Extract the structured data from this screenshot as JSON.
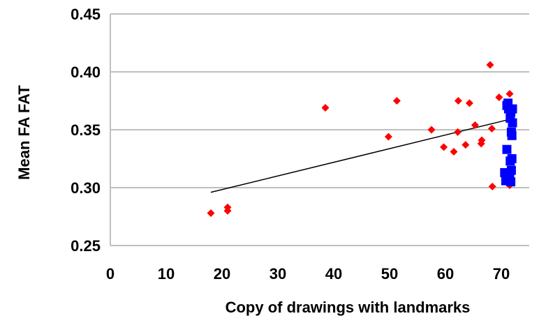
{
  "chart_data": {
    "type": "scatter",
    "xlabel": "Copy of drawings with landmarks",
    "ylabel": "Mean FA FAT",
    "xlim": [
      0,
      75
    ],
    "ylim": [
      0.25,
      0.45
    ],
    "x_ticks": [
      "0",
      "10",
      "20",
      "30",
      "40",
      "50",
      "60",
      "70"
    ],
    "x_tick_values": [
      0,
      10,
      20,
      30,
      40,
      50,
      60,
      70
    ],
    "y_ticks": [
      "0.25",
      "0.30",
      "0.35",
      "0.40",
      "0.45"
    ],
    "y_tick_values": [
      0.25,
      0.3,
      0.35,
      0.4,
      0.45
    ],
    "grid": "horizontal",
    "legend": "none",
    "series": [
      {
        "marker": "diamond",
        "color": "#ff0000",
        "points": [
          [
            18,
            0.278
          ],
          [
            21,
            0.28
          ],
          [
            21,
            0.283
          ],
          [
            38.5,
            0.369
          ],
          [
            49.8,
            0.344
          ],
          [
            51.3,
            0.375
          ],
          [
            57.5,
            0.35
          ],
          [
            59.7,
            0.335
          ],
          [
            61.5,
            0.331
          ],
          [
            62.2,
            0.348
          ],
          [
            62.3,
            0.375
          ],
          [
            63.6,
            0.337
          ],
          [
            64.3,
            0.373
          ],
          [
            65.3,
            0.354
          ],
          [
            66.4,
            0.338
          ],
          [
            66.5,
            0.341
          ],
          [
            68.0,
            0.406
          ],
          [
            68.3,
            0.351
          ],
          [
            68.4,
            0.301
          ],
          [
            69.6,
            0.378
          ],
          [
            71.5,
            0.381
          ],
          [
            71.5,
            0.302
          ]
        ]
      },
      {
        "marker": "square",
        "color": "#0000ff",
        "points": [
          [
            70.6,
            0.313
          ],
          [
            70.8,
            0.306
          ],
          [
            71.0,
            0.333
          ],
          [
            71.0,
            0.371
          ],
          [
            71.2,
            0.373
          ],
          [
            71.3,
            0.368
          ],
          [
            71.5,
            0.311
          ],
          [
            71.6,
            0.323
          ],
          [
            71.6,
            0.36
          ],
          [
            71.7,
            0.305
          ],
          [
            71.7,
            0.365
          ],
          [
            71.8,
            0.315
          ],
          [
            71.8,
            0.348
          ],
          [
            71.9,
            0.325
          ],
          [
            71.9,
            0.345
          ],
          [
            72.0,
            0.356
          ],
          [
            72.0,
            0.368
          ]
        ]
      }
    ],
    "trendline": {
      "color": "#000000",
      "from": [
        18,
        0.296
      ],
      "to": [
        71.5,
        0.359
      ]
    }
  }
}
